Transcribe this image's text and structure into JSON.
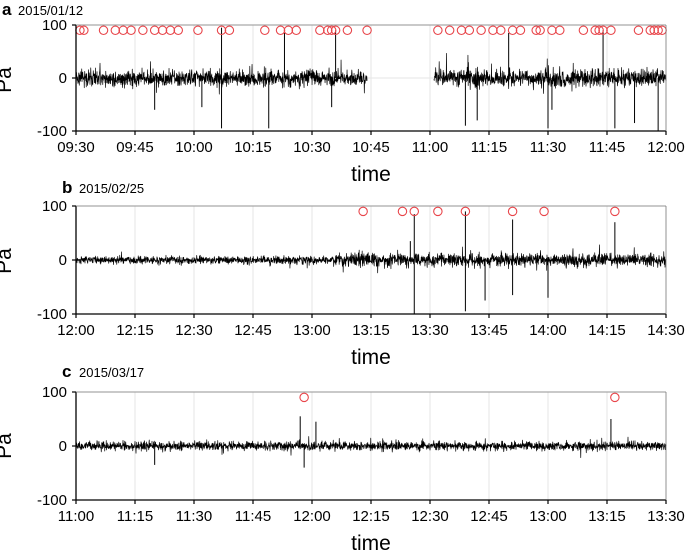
{
  "chart_data": [
    {
      "panel": "a",
      "date": "2015/01/12",
      "type": "line",
      "xlabel": "time",
      "ylabel": "Pa",
      "xlim": [
        "09:30",
        "12:00"
      ],
      "ylim": [
        -100,
        100
      ],
      "xticks": [
        "09:30",
        "09:45",
        "10:00",
        "10:15",
        "10:30",
        "10:45",
        "11:00",
        "11:15",
        "11:30",
        "11:45",
        "12:00"
      ],
      "yticks": [
        -100,
        0,
        100
      ],
      "grid": true,
      "gaps": [
        [
          "10:44",
          "11:01"
        ]
      ],
      "segments": [
        {
          "start": "09:30",
          "end": "10:44",
          "base_amplitude": 28
        },
        {
          "start": "11:01",
          "end": "12:00",
          "base_amplitude": 30
        }
      ],
      "marker_y": 90,
      "events": [
        "09:31",
        "09:32",
        "09:37",
        "09:40",
        "09:42",
        "09:44",
        "09:47",
        "09:50",
        "09:52",
        "09:54",
        "09:56",
        "10:01",
        "10:07",
        "10:09",
        "10:18",
        "10:22",
        "10:24",
        "10:26",
        "10:32",
        "10:34",
        "10:35",
        "10:36",
        "10:39",
        "10:44",
        "11:02",
        "11:05",
        "11:08",
        "11:10",
        "11:13",
        "11:16",
        "11:18",
        "11:21",
        "11:23",
        "11:27",
        "11:28",
        "11:31",
        "11:33",
        "11:39",
        "11:42",
        "11:43",
        "11:44",
        "11:46",
        "11:53",
        "11:56",
        "11:57",
        "11:58",
        "11:59"
      ],
      "spikes": [
        {
          "t": "09:50",
          "v": -60
        },
        {
          "t": "10:02",
          "v": -55
        },
        {
          "t": "10:07",
          "v": 95
        },
        {
          "t": "10:07",
          "v": -95
        },
        {
          "t": "10:19",
          "v": -95
        },
        {
          "t": "10:23",
          "v": 85
        },
        {
          "t": "10:35",
          "v": -55
        },
        {
          "t": "10:36",
          "v": 90
        },
        {
          "t": "11:09",
          "v": -90
        },
        {
          "t": "11:12",
          "v": -80
        },
        {
          "t": "11:20",
          "v": 85
        },
        {
          "t": "11:30",
          "v": -95
        },
        {
          "t": "11:31",
          "v": -60
        },
        {
          "t": "11:44",
          "v": 90
        },
        {
          "t": "11:47",
          "v": -95
        },
        {
          "t": "11:52",
          "v": -85
        },
        {
          "t": "11:58",
          "v": -100
        }
      ]
    },
    {
      "panel": "b",
      "date": "2015/02/25",
      "type": "line",
      "xlabel": "time",
      "ylabel": "Pa",
      "xlim": [
        "12:00",
        "14:30"
      ],
      "ylim": [
        -100,
        100
      ],
      "xticks": [
        "12:00",
        "12:15",
        "12:30",
        "12:45",
        "13:00",
        "13:15",
        "13:30",
        "13:45",
        "14:00",
        "14:15",
        "14:30"
      ],
      "yticks": [
        -100,
        0,
        100
      ],
      "grid": true,
      "gaps": [],
      "segments": [
        {
          "start": "12:00",
          "end": "13:05",
          "base_amplitude": 13
        },
        {
          "start": "13:05",
          "end": "14:30",
          "base_amplitude": 22
        }
      ],
      "marker_y": 90,
      "events": [
        "13:13",
        "13:23",
        "13:26",
        "13:32",
        "13:39",
        "13:51",
        "13:59",
        "14:17"
      ],
      "spikes": [
        {
          "t": "13:25",
          "v": 35
        },
        {
          "t": "13:26",
          "v": -100
        },
        {
          "t": "13:26",
          "v": 85
        },
        {
          "t": "13:39",
          "v": 90
        },
        {
          "t": "13:39",
          "v": -95
        },
        {
          "t": "13:44",
          "v": -75
        },
        {
          "t": "13:51",
          "v": 75
        },
        {
          "t": "13:51",
          "v": -65
        },
        {
          "t": "14:00",
          "v": -70
        },
        {
          "t": "14:17",
          "v": 70
        }
      ]
    },
    {
      "panel": "c",
      "date": "2015/03/17",
      "type": "line",
      "xlabel": "time",
      "ylabel": "Pa",
      "xlim": [
        "11:00",
        "13:30"
      ],
      "ylim": [
        -100,
        100
      ],
      "xticks": [
        "11:00",
        "11:15",
        "11:30",
        "11:45",
        "12:00",
        "12:15",
        "12:30",
        "12:45",
        "13:00",
        "13:15",
        "13:30"
      ],
      "yticks": [
        -100,
        0,
        100
      ],
      "grid": true,
      "gaps": [],
      "segments": [
        {
          "start": "11:00",
          "end": "13:30",
          "base_amplitude": 15
        }
      ],
      "marker_y": 90,
      "events": [
        "11:58",
        "13:17"
      ],
      "spikes": [
        {
          "t": "11:57",
          "v": 55
        },
        {
          "t": "11:58",
          "v": -40
        },
        {
          "t": "12:01",
          "v": 45
        },
        {
          "t": "13:16",
          "v": 50
        },
        {
          "t": "11:20",
          "v": -35
        }
      ]
    }
  ],
  "colors": {
    "signal": "#000000",
    "marker": "#e8454a",
    "grid": "#e6e6e6",
    "axis": "#000000"
  }
}
